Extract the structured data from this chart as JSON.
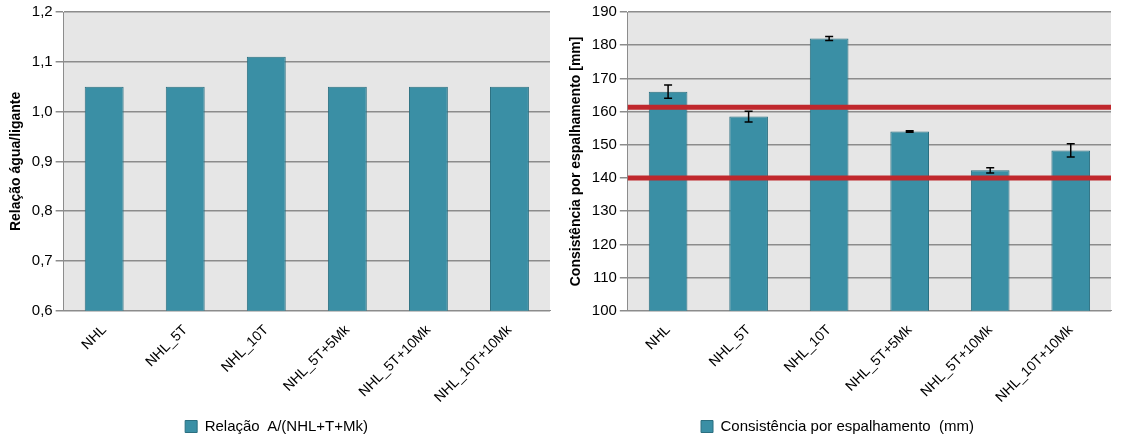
{
  "chart_data": [
    {
      "type": "bar",
      "ylabel": "Relação água/ligante",
      "categories": [
        "NHL",
        "NHL_5T",
        "NHL_10T",
        "NHL_5T+5Mk",
        "NHL_5T+10Mk",
        "NHL_10T+10Mk"
      ],
      "series": [
        {
          "name": "Relação  A/(NHL+T+Mk)",
          "color": "#3a8fa5",
          "values": [
            1.05,
            1.05,
            1.11,
            1.05,
            1.05,
            1.05
          ]
        }
      ],
      "ylim": [
        0.6,
        1.2
      ],
      "yticks": [
        {
          "value": 0.6,
          "label": "0,6"
        },
        {
          "value": 0.7,
          "label": "0,7"
        },
        {
          "value": 0.8,
          "label": "0,8"
        },
        {
          "value": 0.9,
          "label": "0,9"
        },
        {
          "value": 1.0,
          "label": "1,0"
        },
        {
          "value": 1.1,
          "label": "1,1"
        },
        {
          "value": 1.2,
          "label": "1,2"
        }
      ],
      "grid": "y",
      "legend": "bottom"
    },
    {
      "type": "bar",
      "ylabel": "Consistência por espalhamento [mm]",
      "categories": [
        "NHL",
        "NHL_5T",
        "NHL_10T",
        "NHL_5T+5Mk",
        "NHL_5T+10Mk",
        "NHL_10T+10Mk"
      ],
      "series": [
        {
          "name": "Consistência por espalhamento  (mm)",
          "color": "#3a8fa5",
          "values": [
            166,
            158.5,
            182,
            154,
            142.3,
            148.3
          ],
          "errors": [
            2,
            1.6,
            0.6,
            0.2,
            0.8,
            2
          ]
        }
      ],
      "ylim": [
        100,
        190
      ],
      "yticks": [
        100,
        110,
        120,
        130,
        140,
        150,
        160,
        170,
        180,
        190
      ],
      "ref_lines": [
        {
          "axis": "y",
          "value": 161.3,
          "color": "#c0282d"
        },
        {
          "axis": "y",
          "value": 140,
          "color": "#c0282d"
        }
      ],
      "grid": "y",
      "legend": "bottom"
    }
  ]
}
